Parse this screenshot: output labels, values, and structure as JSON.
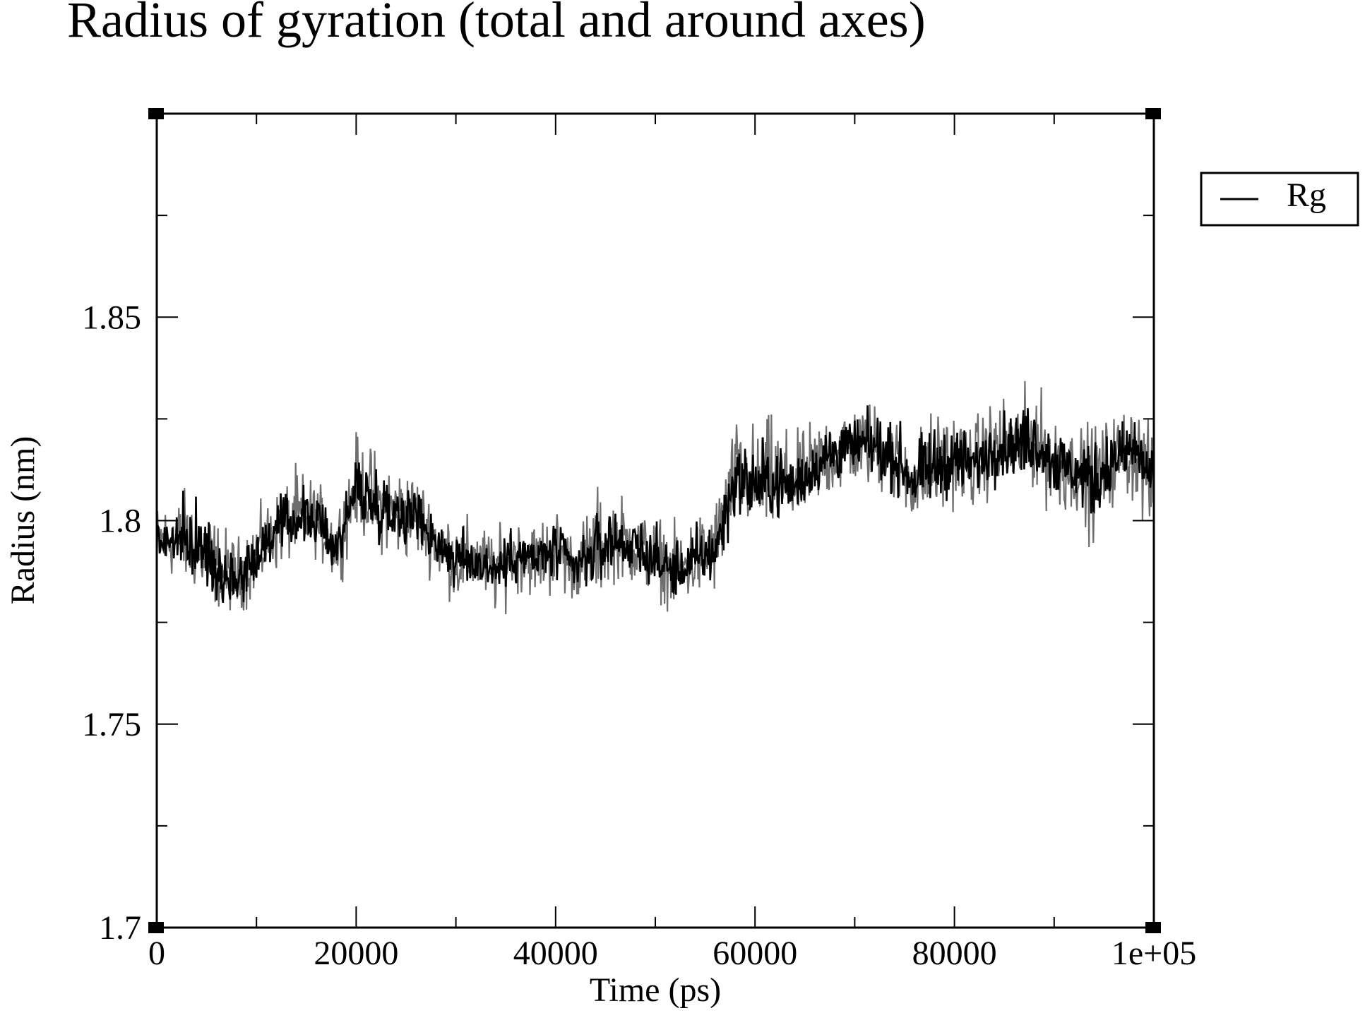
{
  "chart_data": {
    "type": "line",
    "title": "Radius of gyration (total and around axes)",
    "xlabel": "Time (ps)",
    "ylabel": "Radius (nm)",
    "xlim": [
      0,
      100000
    ],
    "ylim": [
      1.7,
      1.9
    ],
    "x_ticks": [
      0,
      20000,
      40000,
      60000,
      80000,
      100000
    ],
    "x_tick_labels": [
      "0",
      "20000",
      "40000",
      "60000",
      "80000",
      "1e+05"
    ],
    "y_ticks": [
      1.7,
      1.75,
      1.8,
      1.85
    ],
    "y_tick_labels": [
      "1.7",
      "1.75",
      "1.8",
      "1.85"
    ],
    "grid": false,
    "legend_position": "top-right outside",
    "series": [
      {
        "name": "Rg",
        "color": "#000000",
        "x": [
          0,
          2000,
          4000,
          6000,
          8000,
          10000,
          12000,
          14000,
          16000,
          18000,
          20000,
          22000,
          24000,
          26000,
          28000,
          30000,
          32000,
          34000,
          36000,
          38000,
          40000,
          42000,
          44000,
          46000,
          48000,
          50000,
          52000,
          54000,
          56000,
          58000,
          60000,
          62000,
          64000,
          66000,
          68000,
          70000,
          72000,
          74000,
          76000,
          78000,
          80000,
          82000,
          84000,
          86000,
          88000,
          90000,
          92000,
          94000,
          96000,
          98000,
          100000
        ],
        "y": [
          1.795,
          1.795,
          1.793,
          1.788,
          1.785,
          1.792,
          1.798,
          1.8,
          1.8,
          1.793,
          1.808,
          1.803,
          1.803,
          1.802,
          1.795,
          1.79,
          1.79,
          1.788,
          1.792,
          1.79,
          1.793,
          1.788,
          1.792,
          1.795,
          1.793,
          1.79,
          1.787,
          1.79,
          1.792,
          1.81,
          1.808,
          1.808,
          1.808,
          1.813,
          1.817,
          1.818,
          1.818,
          1.815,
          1.81,
          1.813,
          1.815,
          1.813,
          1.818,
          1.818,
          1.82,
          1.815,
          1.812,
          1.81,
          1.815,
          1.818,
          1.81
        ],
        "min": [
          1.782,
          1.782,
          1.778,
          1.775,
          1.774,
          1.776,
          1.783,
          1.788,
          1.788,
          1.78,
          1.793,
          1.79,
          1.783,
          1.786,
          1.782,
          1.775,
          1.778,
          1.772,
          1.778,
          1.778,
          1.776,
          1.778,
          1.776,
          1.782,
          1.78,
          1.778,
          1.774,
          1.776,
          1.778,
          1.793,
          1.793,
          1.793,
          1.795,
          1.8,
          1.8,
          1.805,
          1.803,
          1.8,
          1.793,
          1.795,
          1.8,
          1.798,
          1.803,
          1.803,
          1.803,
          1.795,
          1.798,
          1.788,
          1.8,
          1.8,
          1.785
        ],
        "max": [
          1.808,
          1.81,
          1.817,
          1.805,
          1.8,
          1.806,
          1.81,
          1.818,
          1.814,
          1.806,
          1.826,
          1.823,
          1.817,
          1.816,
          1.808,
          1.806,
          1.804,
          1.801,
          1.806,
          1.804,
          1.808,
          1.8,
          1.814,
          1.812,
          1.808,
          1.806,
          1.803,
          1.806,
          1.811,
          1.83,
          1.83,
          1.833,
          1.825,
          1.83,
          1.835,
          1.832,
          1.834,
          1.832,
          1.827,
          1.833,
          1.832,
          1.83,
          1.835,
          1.836,
          1.838,
          1.833,
          1.827,
          1.83,
          1.83,
          1.835,
          1.825
        ]
      }
    ]
  }
}
